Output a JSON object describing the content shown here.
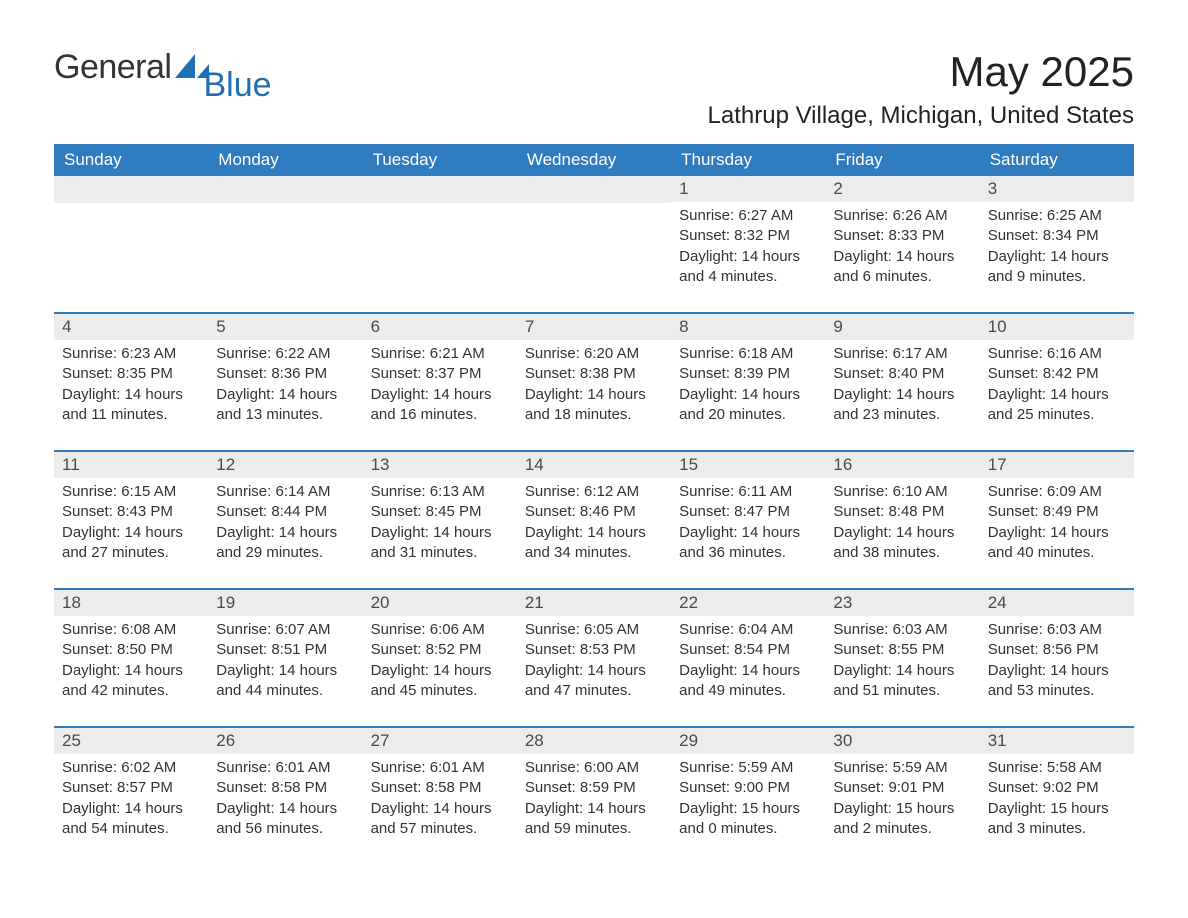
{
  "brand": {
    "word1": "General",
    "word2": "Blue"
  },
  "title": "May 2025",
  "location": "Lathrup Village, Michigan, United States",
  "colors": {
    "header_bg": "#2f7bbf",
    "header_text": "#ffffff",
    "daynum_bg": "#ececec",
    "border": "#2f7bbf",
    "brand_blue": "#1f6fb2",
    "text": "#333333",
    "background": "#ffffff"
  },
  "typography": {
    "title_fontsize": 42,
    "subtitle_fontsize": 24,
    "dow_fontsize": 17,
    "body_fontsize": 15
  },
  "daysOfWeek": [
    "Sunday",
    "Monday",
    "Tuesday",
    "Wednesday",
    "Thursday",
    "Friday",
    "Saturday"
  ],
  "weeks": [
    [
      null,
      null,
      null,
      null,
      {
        "n": "1",
        "sunrise": "Sunrise: 6:27 AM",
        "sunset": "Sunset: 8:32 PM",
        "daylight": "Daylight: 14 hours and 4 minutes."
      },
      {
        "n": "2",
        "sunrise": "Sunrise: 6:26 AM",
        "sunset": "Sunset: 8:33 PM",
        "daylight": "Daylight: 14 hours and 6 minutes."
      },
      {
        "n": "3",
        "sunrise": "Sunrise: 6:25 AM",
        "sunset": "Sunset: 8:34 PM",
        "daylight": "Daylight: 14 hours and 9 minutes."
      }
    ],
    [
      {
        "n": "4",
        "sunrise": "Sunrise: 6:23 AM",
        "sunset": "Sunset: 8:35 PM",
        "daylight": "Daylight: 14 hours and 11 minutes."
      },
      {
        "n": "5",
        "sunrise": "Sunrise: 6:22 AM",
        "sunset": "Sunset: 8:36 PM",
        "daylight": "Daylight: 14 hours and 13 minutes."
      },
      {
        "n": "6",
        "sunrise": "Sunrise: 6:21 AM",
        "sunset": "Sunset: 8:37 PM",
        "daylight": "Daylight: 14 hours and 16 minutes."
      },
      {
        "n": "7",
        "sunrise": "Sunrise: 6:20 AM",
        "sunset": "Sunset: 8:38 PM",
        "daylight": "Daylight: 14 hours and 18 minutes."
      },
      {
        "n": "8",
        "sunrise": "Sunrise: 6:18 AM",
        "sunset": "Sunset: 8:39 PM",
        "daylight": "Daylight: 14 hours and 20 minutes."
      },
      {
        "n": "9",
        "sunrise": "Sunrise: 6:17 AM",
        "sunset": "Sunset: 8:40 PM",
        "daylight": "Daylight: 14 hours and 23 minutes."
      },
      {
        "n": "10",
        "sunrise": "Sunrise: 6:16 AM",
        "sunset": "Sunset: 8:42 PM",
        "daylight": "Daylight: 14 hours and 25 minutes."
      }
    ],
    [
      {
        "n": "11",
        "sunrise": "Sunrise: 6:15 AM",
        "sunset": "Sunset: 8:43 PM",
        "daylight": "Daylight: 14 hours and 27 minutes."
      },
      {
        "n": "12",
        "sunrise": "Sunrise: 6:14 AM",
        "sunset": "Sunset: 8:44 PM",
        "daylight": "Daylight: 14 hours and 29 minutes."
      },
      {
        "n": "13",
        "sunrise": "Sunrise: 6:13 AM",
        "sunset": "Sunset: 8:45 PM",
        "daylight": "Daylight: 14 hours and 31 minutes."
      },
      {
        "n": "14",
        "sunrise": "Sunrise: 6:12 AM",
        "sunset": "Sunset: 8:46 PM",
        "daylight": "Daylight: 14 hours and 34 minutes."
      },
      {
        "n": "15",
        "sunrise": "Sunrise: 6:11 AM",
        "sunset": "Sunset: 8:47 PM",
        "daylight": "Daylight: 14 hours and 36 minutes."
      },
      {
        "n": "16",
        "sunrise": "Sunrise: 6:10 AM",
        "sunset": "Sunset: 8:48 PM",
        "daylight": "Daylight: 14 hours and 38 minutes."
      },
      {
        "n": "17",
        "sunrise": "Sunrise: 6:09 AM",
        "sunset": "Sunset: 8:49 PM",
        "daylight": "Daylight: 14 hours and 40 minutes."
      }
    ],
    [
      {
        "n": "18",
        "sunrise": "Sunrise: 6:08 AM",
        "sunset": "Sunset: 8:50 PM",
        "daylight": "Daylight: 14 hours and 42 minutes."
      },
      {
        "n": "19",
        "sunrise": "Sunrise: 6:07 AM",
        "sunset": "Sunset: 8:51 PM",
        "daylight": "Daylight: 14 hours and 44 minutes."
      },
      {
        "n": "20",
        "sunrise": "Sunrise: 6:06 AM",
        "sunset": "Sunset: 8:52 PM",
        "daylight": "Daylight: 14 hours and 45 minutes."
      },
      {
        "n": "21",
        "sunrise": "Sunrise: 6:05 AM",
        "sunset": "Sunset: 8:53 PM",
        "daylight": "Daylight: 14 hours and 47 minutes."
      },
      {
        "n": "22",
        "sunrise": "Sunrise: 6:04 AM",
        "sunset": "Sunset: 8:54 PM",
        "daylight": "Daylight: 14 hours and 49 minutes."
      },
      {
        "n": "23",
        "sunrise": "Sunrise: 6:03 AM",
        "sunset": "Sunset: 8:55 PM",
        "daylight": "Daylight: 14 hours and 51 minutes."
      },
      {
        "n": "24",
        "sunrise": "Sunrise: 6:03 AM",
        "sunset": "Sunset: 8:56 PM",
        "daylight": "Daylight: 14 hours and 53 minutes."
      }
    ],
    [
      {
        "n": "25",
        "sunrise": "Sunrise: 6:02 AM",
        "sunset": "Sunset: 8:57 PM",
        "daylight": "Daylight: 14 hours and 54 minutes."
      },
      {
        "n": "26",
        "sunrise": "Sunrise: 6:01 AM",
        "sunset": "Sunset: 8:58 PM",
        "daylight": "Daylight: 14 hours and 56 minutes."
      },
      {
        "n": "27",
        "sunrise": "Sunrise: 6:01 AM",
        "sunset": "Sunset: 8:58 PM",
        "daylight": "Daylight: 14 hours and 57 minutes."
      },
      {
        "n": "28",
        "sunrise": "Sunrise: 6:00 AM",
        "sunset": "Sunset: 8:59 PM",
        "daylight": "Daylight: 14 hours and 59 minutes."
      },
      {
        "n": "29",
        "sunrise": "Sunrise: 5:59 AM",
        "sunset": "Sunset: 9:00 PM",
        "daylight": "Daylight: 15 hours and 0 minutes."
      },
      {
        "n": "30",
        "sunrise": "Sunrise: 5:59 AM",
        "sunset": "Sunset: 9:01 PM",
        "daylight": "Daylight: 15 hours and 2 minutes."
      },
      {
        "n": "31",
        "sunrise": "Sunrise: 5:58 AM",
        "sunset": "Sunset: 9:02 PM",
        "daylight": "Daylight: 15 hours and 3 minutes."
      }
    ]
  ]
}
